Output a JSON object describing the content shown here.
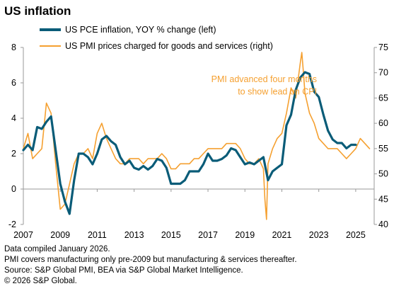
{
  "chart_data": {
    "type": "line",
    "title": "US inflation",
    "x_ticks": [
      "2007",
      "2009",
      "2011",
      "2013",
      "2015",
      "2017",
      "2019",
      "2021",
      "2023",
      "2025"
    ],
    "y_left": {
      "min": -2,
      "max": 8,
      "ticks": [
        "-2",
        "0",
        "2",
        "4",
        "6",
        "8"
      ]
    },
    "y_right": {
      "min": 40,
      "max": 75,
      "ticks": [
        "40",
        "45",
        "50",
        "55",
        "60",
        "65",
        "70",
        "75"
      ]
    },
    "grid": false,
    "legend_position": "top-left",
    "series": [
      {
        "name": "US PCE inflation, YOY % change (left)",
        "axis": "left",
        "color": "#0a5c78",
        "x": [
          2007.0,
          2007.25,
          2007.5,
          2007.75,
          2008.0,
          2008.25,
          2008.5,
          2008.75,
          2009.0,
          2009.25,
          2009.5,
          2009.75,
          2010.0,
          2010.25,
          2010.5,
          2010.75,
          2011.0,
          2011.25,
          2011.5,
          2011.75,
          2012.0,
          2012.25,
          2012.5,
          2012.75,
          2013.0,
          2013.25,
          2013.5,
          2013.75,
          2014.0,
          2014.25,
          2014.5,
          2014.75,
          2015.0,
          2015.25,
          2015.5,
          2015.75,
          2016.0,
          2016.25,
          2016.5,
          2016.75,
          2017.0,
          2017.25,
          2017.5,
          2017.75,
          2018.0,
          2018.25,
          2018.5,
          2018.75,
          2019.0,
          2019.25,
          2019.5,
          2019.75,
          2020.0,
          2020.25,
          2020.5,
          2020.75,
          2021.0,
          2021.25,
          2021.5,
          2021.75,
          2022.0,
          2022.25,
          2022.5,
          2022.75,
          2023.0,
          2023.25,
          2023.5,
          2023.75,
          2024.0,
          2024.25,
          2024.5,
          2024.75,
          2025.0
        ],
        "values": [
          2.2,
          2.5,
          2.2,
          3.5,
          3.4,
          3.8,
          4.1,
          2.2,
          0.3,
          -0.7,
          -1.4,
          0.5,
          2.0,
          2.0,
          1.8,
          1.4,
          2.0,
          2.8,
          3.0,
          2.7,
          2.5,
          1.8,
          1.4,
          1.6,
          1.2,
          1.1,
          1.3,
          1.1,
          1.3,
          1.7,
          1.6,
          1.2,
          0.3,
          0.3,
          0.3,
          0.5,
          1.0,
          1.0,
          1.0,
          1.4,
          2.0,
          1.6,
          1.6,
          1.7,
          1.9,
          2.3,
          2.2,
          1.8,
          1.4,
          1.5,
          1.4,
          1.6,
          1.8,
          0.5,
          1.0,
          1.2,
          1.4,
          3.6,
          4.2,
          5.6,
          6.3,
          6.6,
          6.5,
          5.5,
          5.2,
          4.2,
          3.3,
          2.8,
          2.6,
          2.6,
          2.3,
          2.5,
          2.5
        ]
      },
      {
        "name": "US PMI prices charged for goods and services (right)",
        "axis": "right",
        "color": "#f5a030",
        "x": [
          2007.0,
          2007.25,
          2007.5,
          2007.75,
          2008.0,
          2008.25,
          2008.5,
          2008.75,
          2009.0,
          2009.25,
          2009.5,
          2009.75,
          2010.0,
          2010.25,
          2010.5,
          2010.75,
          2011.0,
          2011.25,
          2011.5,
          2011.75,
          2012.0,
          2012.25,
          2012.5,
          2012.75,
          2013.0,
          2013.25,
          2013.5,
          2013.75,
          2014.0,
          2014.25,
          2014.5,
          2014.75,
          2015.0,
          2015.25,
          2015.5,
          2015.75,
          2016.0,
          2016.25,
          2016.5,
          2016.75,
          2017.0,
          2017.25,
          2017.5,
          2017.75,
          2018.0,
          2018.25,
          2018.5,
          2018.75,
          2019.0,
          2019.25,
          2019.5,
          2019.75,
          2020.0,
          2020.08,
          2020.17,
          2020.25,
          2020.5,
          2020.75,
          2021.0,
          2021.25,
          2021.5,
          2021.75,
          2022.0,
          2022.08,
          2022.17,
          2022.25,
          2022.5,
          2022.75,
          2023.0,
          2023.25,
          2023.5,
          2023.75,
          2024.0,
          2024.25,
          2024.5,
          2024.75,
          2025.0,
          2025.25,
          2025.5,
          2025.75
        ],
        "values": [
          55,
          58,
          53,
          54,
          55,
          64,
          62,
          52,
          43,
          44,
          48,
          52,
          54,
          54,
          55,
          53,
          58,
          60,
          57,
          55,
          53,
          52,
          52,
          53,
          53,
          53,
          52,
          53,
          53,
          53,
          54,
          53,
          51,
          51,
          52,
          52,
          52,
          53,
          53,
          54,
          55,
          55,
          55,
          55,
          56,
          56,
          56,
          55,
          53,
          52,
          52,
          53,
          51,
          45,
          41,
          52,
          55,
          57,
          58,
          62,
          67,
          65,
          72,
          74,
          70,
          66,
          62,
          60,
          57,
          56,
          55,
          55,
          55,
          54,
          53,
          54,
          55,
          57,
          56,
          55
        ]
      }
    ],
    "annotations": [
      {
        "text": "PMI advanced four months",
        "x": 2022.9,
        "y_left": 6.2
      },
      {
        "text": "to show lead on CPI",
        "x": 2022.9,
        "y_left": 5.5
      }
    ]
  },
  "notes": [
    "Data compiled January 2026.",
    "PMI covers manufacturing only pre-2009 but manufacturing & services thereafter.",
    "Source: S&P Global PMI, BEA via S&P Global Market Intelligence.",
    "© 2026 S&P Global."
  ]
}
